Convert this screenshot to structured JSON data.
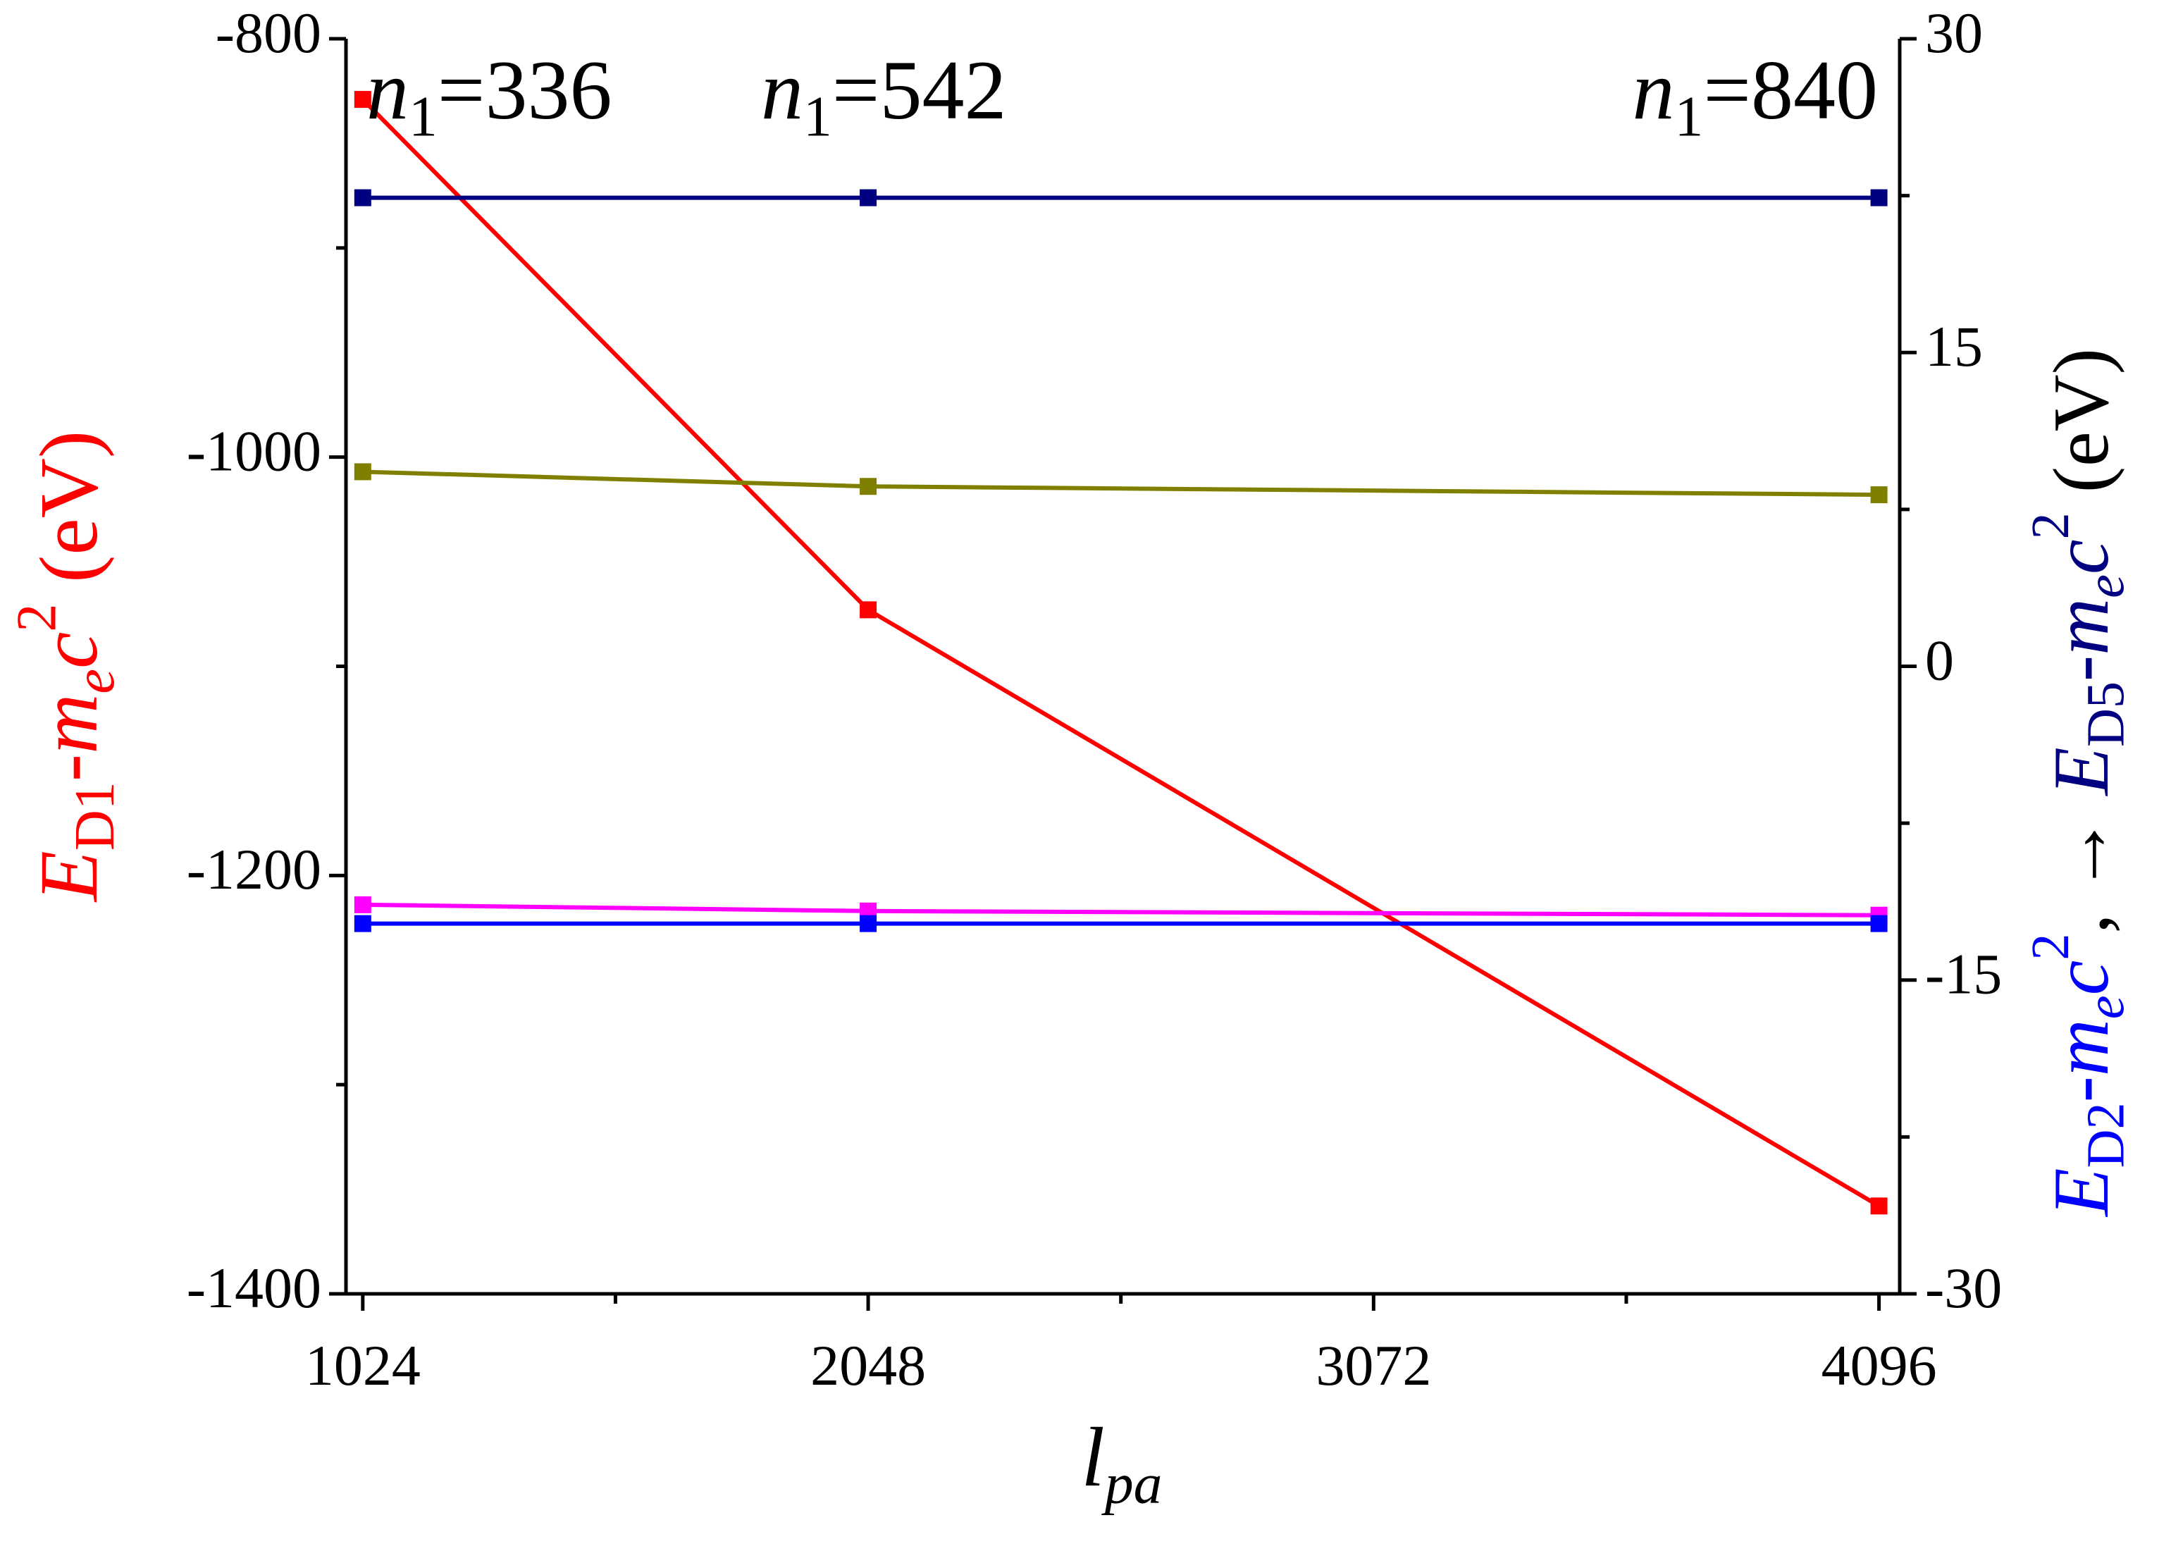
{
  "chart_data": {
    "type": "line",
    "x": [
      1024,
      2048,
      4096
    ],
    "xlim": [
      990,
      4138
    ],
    "xticks": [
      1024,
      2048,
      3072,
      4096
    ],
    "xminorticks": [
      1536,
      2560,
      3584
    ],
    "ylim": [
      -1400,
      -800
    ],
    "yticks": [
      -1400,
      -1200,
      -1000,
      -800
    ],
    "yminorticks": [
      -1300,
      -1100,
      -900
    ],
    "y2lim": [
      -30,
      30
    ],
    "y2ticks": [
      -30,
      -15,
      0,
      15,
      30
    ],
    "y2minorticks": [
      -22.5,
      -7.5,
      7.5,
      22.5
    ],
    "series": [
      {
        "color": "#ff0000",
        "values": [
          -829,
          -1073,
          -1358
        ]
      },
      {
        "color": "#000080",
        "axis": "y2",
        "values": [
          22.4,
          22.4,
          22.4
        ]
      },
      {
        "color": "#808000",
        "axis": "y2",
        "values": [
          9.3,
          8.6,
          8.2
        ]
      },
      {
        "color": "#ff00ff",
        "axis": "y2",
        "values": [
          -11.4,
          -11.7,
          -11.9
        ]
      },
      {
        "color": "#0000ff",
        "axis": "y2",
        "values": [
          -12.3,
          -12.3,
          -12.3
        ]
      }
    ],
    "xlabel": [
      {
        "text": "l",
        "italic": true
      },
      {
        "text": "pa",
        "italic": true,
        "pos": "sub"
      }
    ],
    "ylabel": [
      {
        "text": "E",
        "italic": true,
        "color": "#ff0000"
      },
      {
        "text": "D1",
        "pos": "sub",
        "color": "#ff0000"
      },
      {
        "text": "-",
        "color": "#ff0000"
      },
      {
        "text": "m",
        "italic": true,
        "color": "#ff0000"
      },
      {
        "text": "e",
        "italic": true,
        "pos": "sub",
        "color": "#ff0000"
      },
      {
        "text": "c",
        "italic": true,
        "color": "#ff0000"
      },
      {
        "text": "2",
        "pos": "sup",
        "color": "#ff0000"
      },
      {
        "text": " (eV)",
        "color": "#ff0000"
      }
    ],
    "y2label": [
      {
        "text": "E",
        "italic": true,
        "color": "#0000ff"
      },
      {
        "text": "D2",
        "pos": "sub",
        "color": "#0000ff"
      },
      {
        "text": "-",
        "color": "#0000ff"
      },
      {
        "text": "m",
        "italic": true,
        "color": "#0000ff"
      },
      {
        "text": "e",
        "italic": true,
        "pos": "sub",
        "color": "#0000ff"
      },
      {
        "text": "c",
        "italic": true,
        "color": "#0000ff"
      },
      {
        "text": "2",
        "pos": "sup",
        "color": "#0000ff"
      },
      {
        "text": ", → ",
        "color": "#000000"
      },
      {
        "text": "E",
        "italic": true,
        "color": "#000080"
      },
      {
        "text": "D5",
        "pos": "sub",
        "color": "#000080"
      },
      {
        "text": "-",
        "color": "#000080"
      },
      {
        "text": "m",
        "italic": true,
        "color": "#000080"
      },
      {
        "text": "e",
        "italic": true,
        "pos": "sub",
        "color": "#000080"
      },
      {
        "text": "c",
        "italic": true,
        "color": "#000080"
      },
      {
        "text": "2",
        "pos": "sup",
        "color": "#000080"
      },
      {
        "text": " (eV)",
        "color": "#000000"
      }
    ],
    "annotations": [
      [
        {
          "text": "n",
          "italic": true
        },
        {
          "text": "1",
          "pos": "sub"
        },
        {
          "text": "=336"
        }
      ],
      [
        {
          "text": "n",
          "italic": true
        },
        {
          "text": "1",
          "pos": "sub"
        },
        {
          "text": "=542"
        }
      ],
      [
        {
          "text": "n",
          "italic": true
        },
        {
          "text": "1",
          "pos": "sub"
        },
        {
          "text": "=840"
        }
      ]
    ]
  }
}
